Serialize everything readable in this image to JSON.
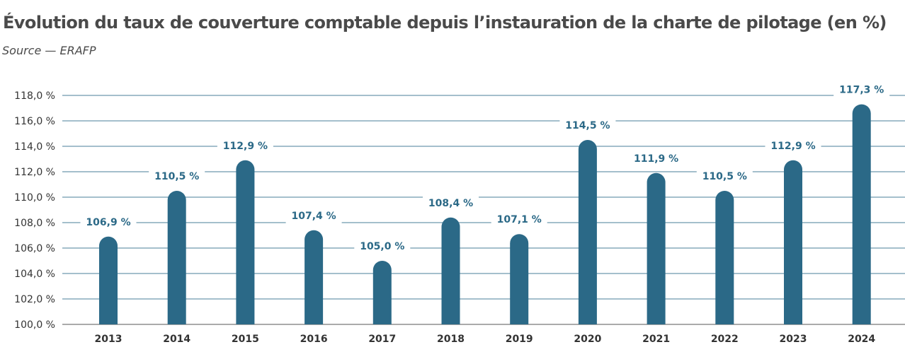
{
  "chart_data": {
    "type": "bar",
    "title": "Évolution du taux de couverture comptable depuis l’instauration de la charte de pilotage (en %)",
    "subtitle": "Source — ERAFP",
    "categories": [
      "2013",
      "2014",
      "2015",
      "2016",
      "2017",
      "2018",
      "2019",
      "2020",
      "2021",
      "2022",
      "2023",
      "2024"
    ],
    "values": [
      106.9,
      110.5,
      112.9,
      107.4,
      105.0,
      108.4,
      107.1,
      114.5,
      111.9,
      110.5,
      112.9,
      117.3
    ],
    "data_labels": [
      "106,9 %",
      "110,5 %",
      "112,9 %",
      "107,4 %",
      "105,0 %",
      "108,4 %",
      "107,1 %",
      "114,5 %",
      "111,9 %",
      "110,5 %",
      "112,9 %",
      "117,3 %"
    ],
    "ylim": [
      100,
      118
    ],
    "yticks": [
      "100,0 %",
      "102,0 %",
      "104,0 %",
      "106,0 %",
      "108,0 %",
      "110,0 %",
      "112,0 %",
      "114,0 %",
      "116,0 %",
      "118,0 %"
    ],
    "xlabel": "",
    "ylabel": "",
    "grid": true,
    "colors": {
      "bar": "#2b6987",
      "grid": "#2b6987",
      "label": "#2b6987"
    }
  }
}
